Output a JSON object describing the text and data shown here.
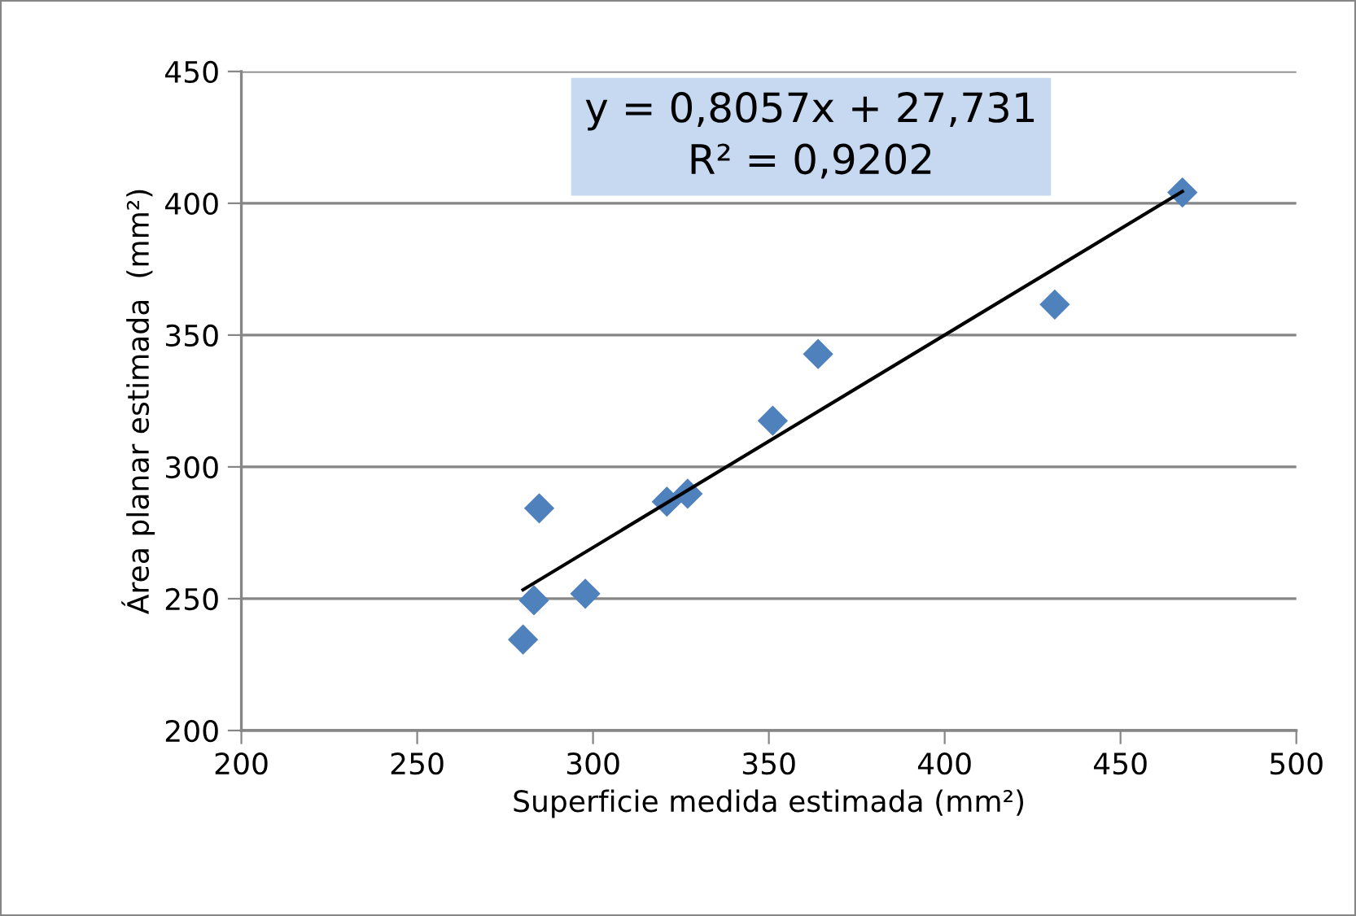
{
  "chart_data": {
    "type": "scatter",
    "xlabel": "Superficie medida estimada (mm²)",
    "ylabel": "Área planar estimada  (mm²)",
    "series": [
      {
        "color": "#4f81bd",
        "marker": "diamond",
        "x": [
          280.1,
          283.2,
          284.7,
          297.8,
          321.0,
          326.9,
          351.1,
          364.0,
          431.3,
          467.6
        ],
        "values": [
          234.5,
          249.4,
          284.3,
          251.9,
          286.8,
          289.8,
          317.5,
          342.8,
          361.6,
          404.1
        ]
      },
      {
        "type": "line",
        "color": "#000000",
        "marker": "none",
        "line_style": "solid",
        "x": [
          280.1,
          467.6
        ],
        "values": [
          253.4,
          404.5
        ]
      }
    ],
    "annotations": [
      "y = 0,8057x + 27,731\nR² = 0,9202"
    ],
    "xlim": [
      200,
      500
    ],
    "xticks": [
      200,
      250,
      300,
      350,
      400,
      450,
      500
    ],
    "ylim": [
      200,
      450
    ],
    "yticks": [
      200,
      250,
      300,
      350,
      400,
      450
    ],
    "grid": "y",
    "legend": false
  }
}
